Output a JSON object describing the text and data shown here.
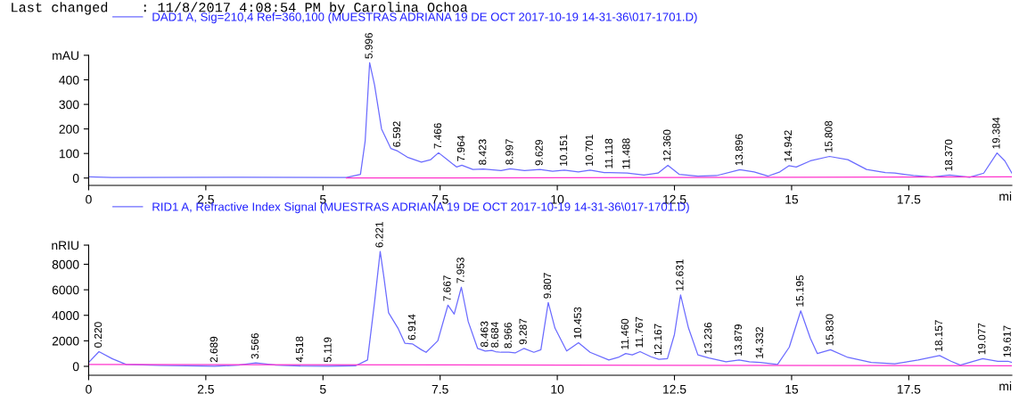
{
  "chart_data": [
    {
      "type": "line",
      "title": "Last changed    : 11/8/2017 4:08:54 PM by Carolina Ochoa",
      "xlabel": "mi",
      "legend": "top",
      "grid": false,
      "marker": "none",
      "line_style": "solid",
      "xlim": [
        0,
        19.7
      ],
      "xticks": [
        0,
        2.5,
        5,
        7.5,
        10,
        12.5,
        15,
        17.5
      ],
      "ylim": [
        -30,
        500
      ],
      "yticks": [
        0,
        100,
        200,
        300,
        400,
        {
          "value": 500,
          "label": "mAU"
        }
      ],
      "series": [
        {
          "name": "DAD1 A, Sig=210,4 Ref=360,100 (MUESTRAS ADRIANA 19 DE OCT 2017-10-19 14-31-36\\017-1701.D)",
          "color": "#6b6bff",
          "x": [
            0,
            0.5,
            3.3,
            5.5,
            5.8,
            5.9,
            5.996,
            6.1,
            6.25,
            6.45,
            6.592,
            6.8,
            7.1,
            7.3,
            7.466,
            7.65,
            7.85,
            7.964,
            8.2,
            8.423,
            8.8,
            8.997,
            9.3,
            9.629,
            9.9,
            10.151,
            10.45,
            10.701,
            11.0,
            11.118,
            11.488,
            11.85,
            12.15,
            12.36,
            12.6,
            13.0,
            13.4,
            13.896,
            14.2,
            14.5,
            14.75,
            14.942,
            15.1,
            15.4,
            15.808,
            16.2,
            16.6,
            17.0,
            17.2,
            17.6,
            18.0,
            18.37,
            18.8,
            19.1,
            19.384,
            19.55,
            19.7
          ],
          "values": [
            5,
            2,
            3,
            2,
            15,
            150,
            470,
            380,
            200,
            120,
            110,
            85,
            65,
            75,
            103,
            75,
            45,
            52,
            35,
            37,
            30,
            38,
            30,
            35,
            28,
            32,
            25,
            32,
            22,
            22,
            20,
            12,
            20,
            52,
            15,
            8,
            10,
            34,
            25,
            8,
            25,
            50,
            45,
            70,
            88,
            75,
            35,
            22,
            20,
            10,
            4,
            12,
            3,
            20,
            102,
            70,
            20
          ]
        },
        {
          "color": "#ff33cc",
          "x": [
            5.5,
            19.7
          ],
          "values": [
            0,
            5
          ]
        }
      ],
      "annotations": [
        {
          "text": "5.996",
          "x": 5.996,
          "y": 470
        },
        {
          "text": "6.592",
          "x": 6.592,
          "y": 110
        },
        {
          "text": "7.466",
          "x": 7.466,
          "y": 103
        },
        {
          "text": "7.964",
          "x": 7.964,
          "y": 52
        },
        {
          "text": "8.423",
          "x": 8.423,
          "y": 37
        },
        {
          "text": "8.997",
          "x": 8.997,
          "y": 38
        },
        {
          "text": "9.629",
          "x": 9.629,
          "y": 35
        },
        {
          "text": "10.151",
          "x": 10.151,
          "y": 32
        },
        {
          "text": "10.701",
          "x": 10.701,
          "y": 32
        },
        {
          "text": "11.118",
          "x": 11.118,
          "y": 22
        },
        {
          "text": "11.488",
          "x": 11.488,
          "y": 20
        },
        {
          "text": "12.360",
          "x": 12.36,
          "y": 52
        },
        {
          "text": "13.896",
          "x": 13.896,
          "y": 34
        },
        {
          "text": "14.942",
          "x": 14.942,
          "y": 50
        },
        {
          "text": "15.808",
          "x": 15.808,
          "y": 88
        },
        {
          "text": "18.370",
          "x": 18.37,
          "y": 12
        },
        {
          "text": "19.384",
          "x": 19.384,
          "y": 102
        }
      ]
    },
    {
      "type": "line",
      "xlabel": "mi",
      "legend": "top",
      "grid": false,
      "marker": "none",
      "line_style": "solid",
      "xlim": [
        0,
        19.7
      ],
      "xticks": [
        0,
        2.5,
        5,
        7.5,
        10,
        12.5,
        15,
        17.5
      ],
      "ylim": [
        -700,
        9500
      ],
      "yticks": [
        0,
        2000,
        4000,
        6000,
        8000,
        {
          "value": 9500,
          "label": "nRIU"
        }
      ],
      "series": [
        {
          "name": "RID1 A, Refractive Index Signal (MUESTRAS ADRIANA 19 DE OCT 2017-10-19 14-31-36\\017-1701.D)",
          "color": "#6b6bff",
          "x": [
            0,
            0.22,
            0.5,
            0.8,
            1.5,
            2.689,
            3.2,
            3.566,
            4.0,
            4.518,
            5.119,
            5.7,
            5.95,
            6.1,
            6.221,
            6.3,
            6.4,
            6.6,
            6.75,
            6.914,
            7.1,
            7.2,
            7.45,
            7.667,
            7.8,
            7.953,
            8.1,
            8.3,
            8.463,
            8.6,
            8.684,
            8.8,
            8.966,
            9.1,
            9.287,
            9.5,
            9.65,
            9.807,
            9.95,
            10.2,
            10.453,
            10.7,
            11.1,
            11.3,
            11.46,
            11.6,
            11.767,
            12.0,
            12.167,
            12.35,
            12.5,
            12.631,
            12.8,
            13.0,
            13.236,
            13.6,
            13.879,
            14.1,
            14.332,
            14.7,
            14.95,
            15.195,
            15.4,
            15.55,
            15.83,
            16.2,
            16.7,
            17.2,
            17.7,
            18.157,
            18.4,
            18.6,
            19.077,
            19.4,
            19.617,
            19.7
          ],
          "values": [
            300,
            1150,
            600,
            150,
            80,
            0,
            100,
            270,
            100,
            20,
            10,
            50,
            500,
            5000,
            9000,
            7000,
            4200,
            3000,
            1800,
            1750,
            1300,
            1100,
            2000,
            4800,
            4100,
            6200,
            3500,
            1400,
            1200,
            1250,
            1150,
            1100,
            1100,
            1050,
            1400,
            1100,
            1300,
            5000,
            3000,
            1200,
            1850,
            1100,
            500,
            700,
            1000,
            900,
            1150,
            750,
            550,
            600,
            2500,
            5600,
            3000,
            900,
            650,
            350,
            500,
            350,
            300,
            150,
            1500,
            4350,
            2200,
            1000,
            1300,
            700,
            300,
            200,
            500,
            850,
            400,
            100,
            600,
            400,
            400,
            300
          ]
        },
        {
          "color": "#ff33cc",
          "x": [
            0,
            19.7
          ],
          "values": [
            150,
            50
          ]
        }
      ],
      "annotations": [
        {
          "text": "0.220",
          "x": 0.22,
          "y": 1150
        },
        {
          "text": "2.689",
          "x": 2.689,
          "y": 0
        },
        {
          "text": "3.566",
          "x": 3.566,
          "y": 270
        },
        {
          "text": "4.518",
          "x": 4.518,
          "y": 20
        },
        {
          "text": "5.119",
          "x": 5.119,
          "y": 10
        },
        {
          "text": "6.221",
          "x": 6.221,
          "y": 9000
        },
        {
          "text": "6.914",
          "x": 6.914,
          "y": 1750
        },
        {
          "text": "7.667",
          "x": 7.667,
          "y": 4800
        },
        {
          "text": "7.953",
          "x": 7.953,
          "y": 6200
        },
        {
          "text": "8.463",
          "x": 8.463,
          "y": 1200
        },
        {
          "text": "8.684",
          "x": 8.684,
          "y": 1150
        },
        {
          "text": "8.966",
          "x": 8.966,
          "y": 1100
        },
        {
          "text": "9.287",
          "x": 9.287,
          "y": 1400
        },
        {
          "text": "9.807",
          "x": 9.807,
          "y": 5000
        },
        {
          "text": "10.453",
          "x": 10.453,
          "y": 1850
        },
        {
          "text": "11.460",
          "x": 11.46,
          "y": 1000
        },
        {
          "text": "11.767",
          "x": 11.767,
          "y": 1150
        },
        {
          "text": "12.167",
          "x": 12.167,
          "y": 550
        },
        {
          "text": "12.631",
          "x": 12.631,
          "y": 5600
        },
        {
          "text": "13.236",
          "x": 13.236,
          "y": 650
        },
        {
          "text": "13.879",
          "x": 13.879,
          "y": 500
        },
        {
          "text": "14.332",
          "x": 14.332,
          "y": 300
        },
        {
          "text": "15.195",
          "x": 15.195,
          "y": 4350
        },
        {
          "text": "15.830",
          "x": 15.83,
          "y": 1300
        },
        {
          "text": "18.157",
          "x": 18.157,
          "y": 850
        },
        {
          "text": "19.077",
          "x": 19.077,
          "y": 600
        },
        {
          "text": "19.617",
          "x": 19.617,
          "y": 400
        }
      ]
    }
  ]
}
